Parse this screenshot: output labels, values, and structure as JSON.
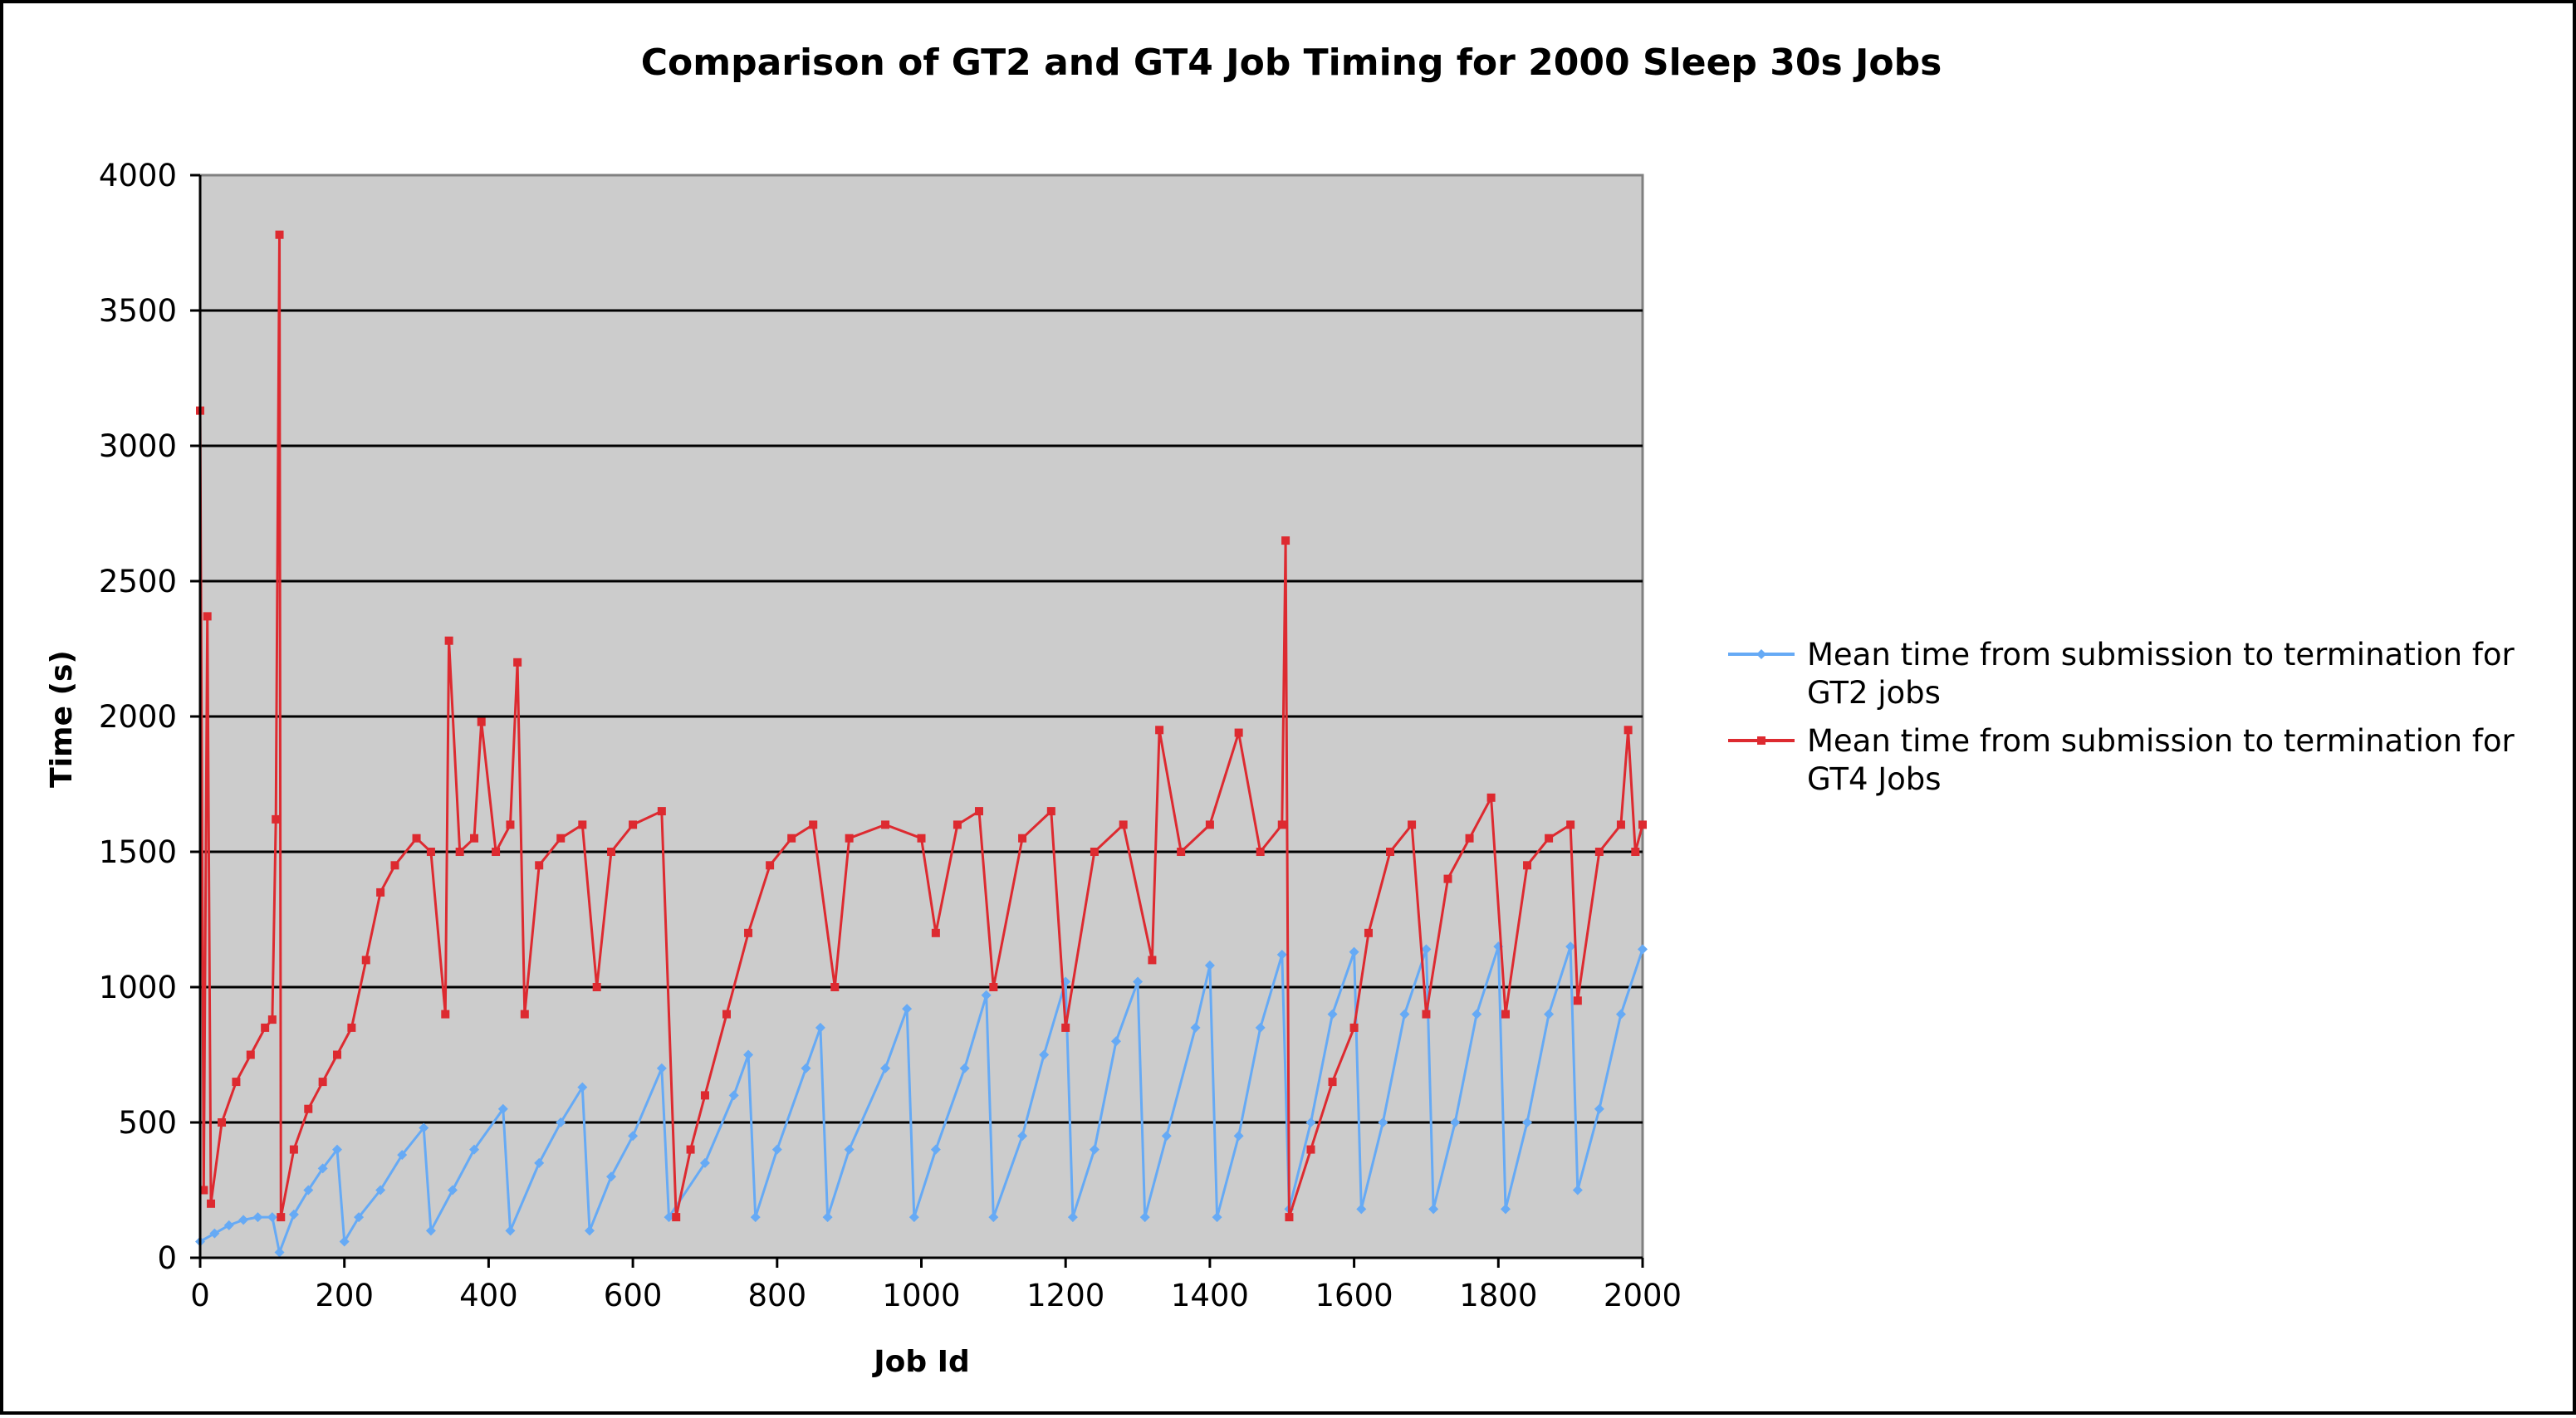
{
  "chart_data": {
    "type": "line",
    "title": "Comparison of GT2 and GT4 Job Timing for 2000 Sleep 30s Jobs",
    "xlabel": "Job Id",
    "ylabel": "Time (s)",
    "xlim": [
      0,
      2000
    ],
    "ylim": [
      0,
      4000
    ],
    "x_ticks": [
      "0",
      "200",
      "400",
      "600",
      "800",
      "1000",
      "1200",
      "1400",
      "1600",
      "1800",
      "2000"
    ],
    "y_ticks": [
      "0",
      "500",
      "1000",
      "1500",
      "2000",
      "2500",
      "3000",
      "3500",
      "4000"
    ],
    "grid": "horizontal major gridlines",
    "plot_background": "#cccccc",
    "legend_position": "right",
    "series": [
      {
        "name": "Mean time from submission to termination for GT2 jobs",
        "color": "#66aaf5",
        "marker": "diamond",
        "points": [
          [
            0,
            60
          ],
          [
            20,
            90
          ],
          [
            40,
            120
          ],
          [
            60,
            140
          ],
          [
            80,
            150
          ],
          [
            100,
            150
          ],
          [
            110,
            20
          ],
          [
            130,
            160
          ],
          [
            150,
            250
          ],
          [
            170,
            330
          ],
          [
            190,
            400
          ],
          [
            200,
            60
          ],
          [
            220,
            150
          ],
          [
            250,
            250
          ],
          [
            280,
            380
          ],
          [
            310,
            480
          ],
          [
            320,
            100
          ],
          [
            350,
            250
          ],
          [
            380,
            400
          ],
          [
            420,
            550
          ],
          [
            430,
            100
          ],
          [
            470,
            350
          ],
          [
            500,
            500
          ],
          [
            530,
            630
          ],
          [
            540,
            100
          ],
          [
            570,
            300
          ],
          [
            600,
            450
          ],
          [
            640,
            700
          ],
          [
            650,
            150
          ],
          [
            700,
            350
          ],
          [
            740,
            600
          ],
          [
            760,
            750
          ],
          [
            770,
            150
          ],
          [
            800,
            400
          ],
          [
            840,
            700
          ],
          [
            860,
            850
          ],
          [
            870,
            150
          ],
          [
            900,
            400
          ],
          [
            950,
            700
          ],
          [
            980,
            920
          ],
          [
            990,
            150
          ],
          [
            1020,
            400
          ],
          [
            1060,
            700
          ],
          [
            1090,
            970
          ],
          [
            1100,
            150
          ],
          [
            1140,
            450
          ],
          [
            1170,
            750
          ],
          [
            1200,
            1020
          ],
          [
            1210,
            150
          ],
          [
            1240,
            400
          ],
          [
            1270,
            800
          ],
          [
            1300,
            1020
          ],
          [
            1310,
            150
          ],
          [
            1340,
            450
          ],
          [
            1380,
            850
          ],
          [
            1400,
            1080
          ],
          [
            1410,
            150
          ],
          [
            1440,
            450
          ],
          [
            1470,
            850
          ],
          [
            1500,
            1120
          ],
          [
            1510,
            180
          ],
          [
            1540,
            500
          ],
          [
            1570,
            900
          ],
          [
            1600,
            1130
          ],
          [
            1610,
            180
          ],
          [
            1640,
            500
          ],
          [
            1670,
            900
          ],
          [
            1700,
            1140
          ],
          [
            1710,
            180
          ],
          [
            1740,
            500
          ],
          [
            1770,
            900
          ],
          [
            1800,
            1150
          ],
          [
            1810,
            180
          ],
          [
            1840,
            500
          ],
          [
            1870,
            900
          ],
          [
            1900,
            1150
          ],
          [
            1910,
            250
          ],
          [
            1940,
            550
          ],
          [
            1970,
            900
          ],
          [
            2000,
            1140
          ]
        ]
      },
      {
        "name": "Mean time from submission to termination for GT4 Jobs",
        "color": "#dd2a30",
        "marker": "square",
        "points": [
          [
            0,
            3130
          ],
          [
            5,
            250
          ],
          [
            10,
            2370
          ],
          [
            15,
            200
          ],
          [
            30,
            500
          ],
          [
            50,
            650
          ],
          [
            70,
            750
          ],
          [
            90,
            850
          ],
          [
            100,
            880
          ],
          [
            105,
            1620
          ],
          [
            110,
            3780
          ],
          [
            112,
            150
          ],
          [
            130,
            400
          ],
          [
            150,
            550
          ],
          [
            170,
            650
          ],
          [
            190,
            750
          ],
          [
            210,
            850
          ],
          [
            230,
            1100
          ],
          [
            250,
            1350
          ],
          [
            270,
            1450
          ],
          [
            300,
            1550
          ],
          [
            320,
            1500
          ],
          [
            340,
            900
          ],
          [
            345,
            2280
          ],
          [
            360,
            1500
          ],
          [
            380,
            1550
          ],
          [
            390,
            1980
          ],
          [
            410,
            1500
          ],
          [
            430,
            1600
          ],
          [
            440,
            2200
          ],
          [
            450,
            900
          ],
          [
            470,
            1450
          ],
          [
            500,
            1550
          ],
          [
            530,
            1600
          ],
          [
            550,
            1000
          ],
          [
            570,
            1500
          ],
          [
            600,
            1600
          ],
          [
            640,
            1650
          ],
          [
            660,
            150
          ],
          [
            680,
            400
          ],
          [
            700,
            600
          ],
          [
            730,
            900
          ],
          [
            760,
            1200
          ],
          [
            790,
            1450
          ],
          [
            820,
            1550
          ],
          [
            850,
            1600
          ],
          [
            880,
            1000
          ],
          [
            900,
            1550
          ],
          [
            950,
            1600
          ],
          [
            1000,
            1550
          ],
          [
            1020,
            1200
          ],
          [
            1050,
            1600
          ],
          [
            1080,
            1650
          ],
          [
            1100,
            1000
          ],
          [
            1140,
            1550
          ],
          [
            1180,
            1650
          ],
          [
            1200,
            850
          ],
          [
            1240,
            1500
          ],
          [
            1280,
            1600
          ],
          [
            1320,
            1100
          ],
          [
            1330,
            1950
          ],
          [
            1360,
            1500
          ],
          [
            1400,
            1600
          ],
          [
            1440,
            1940
          ],
          [
            1470,
            1500
          ],
          [
            1500,
            1600
          ],
          [
            1505,
            2650
          ],
          [
            1510,
            150
          ],
          [
            1540,
            400
          ],
          [
            1570,
            650
          ],
          [
            1600,
            850
          ],
          [
            1620,
            1200
          ],
          [
            1650,
            1500
          ],
          [
            1680,
            1600
          ],
          [
            1700,
            900
          ],
          [
            1730,
            1400
          ],
          [
            1760,
            1550
          ],
          [
            1790,
            1700
          ],
          [
            1810,
            900
          ],
          [
            1840,
            1450
          ],
          [
            1870,
            1550
          ],
          [
            1900,
            1600
          ],
          [
            1910,
            950
          ],
          [
            1940,
            1500
          ],
          [
            1970,
            1600
          ],
          [
            1980,
            1950
          ],
          [
            1990,
            1500
          ],
          [
            2000,
            1600
          ]
        ]
      }
    ]
  }
}
